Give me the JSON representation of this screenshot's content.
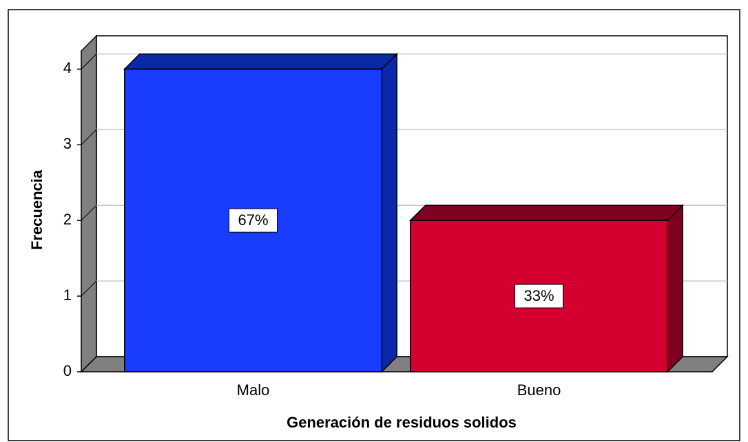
{
  "chart_data": {
    "type": "bar3d",
    "x_label": "Generación de residuos solidos",
    "y_label": "Frecuencia",
    "categories": [
      "Malo",
      "Bueno"
    ],
    "values": [
      4,
      2
    ],
    "data_labels": [
      {
        "value": 67,
        "label": "67%"
      },
      {
        "value": 33,
        "label": "33%"
      }
    ],
    "colors": [
      "#1a3cff",
      "#d4002f"
    ],
    "side_colors": [
      "#0a28a8",
      "#800020"
    ],
    "ylim": [
      0,
      4.24
    ],
    "yticks": [
      0,
      1,
      2,
      3,
      4
    ],
    "grid": true
  }
}
